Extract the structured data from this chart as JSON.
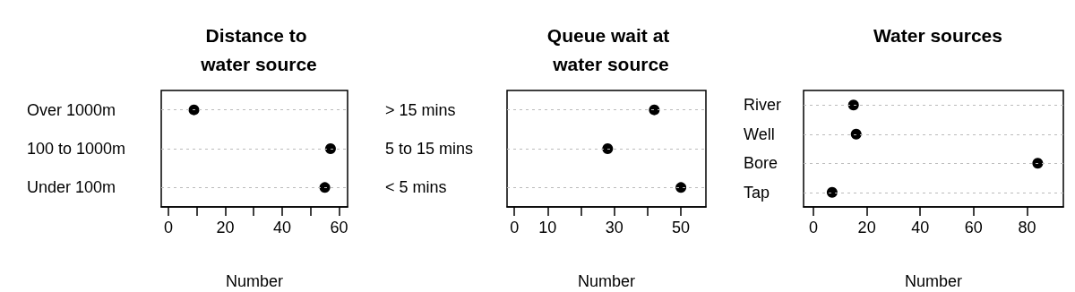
{
  "chart_data": [
    {
      "type": "scatter",
      "orientation": "horizontal",
      "title": "Distance to water source",
      "xlabel": "Number",
      "categories": [
        "Over 1000m",
        "100 to 1000m",
        "Under 100m"
      ],
      "values": [
        9,
        57,
        55
      ],
      "color": "#000000",
      "marker": "circle",
      "grid": "y",
      "xlim": [
        -2.5,
        63
      ],
      "xticks": [
        0,
        {
          "value": 10,
          "label": null
        },
        20,
        {
          "value": 30,
          "label": null
        },
        40,
        {
          "value": 50,
          "label": null
        },
        60
      ]
    },
    {
      "type": "scatter",
      "orientation": "horizontal",
      "title": "Queue wait at water source",
      "xlabel": "Number",
      "categories": [
        "> 15 mins",
        "5 to 15 mins",
        "< 5 mins"
      ],
      "values": [
        42,
        28,
        50
      ],
      "color": "#000000",
      "marker": "circle",
      "grid": "y",
      "xlim": [
        -2.2,
        57.5
      ],
      "xticks": [
        0,
        10,
        {
          "value": 20,
          "label": null
        },
        30,
        {
          "value": 40,
          "label": null
        },
        50
      ]
    },
    {
      "type": "scatter",
      "orientation": "horizontal",
      "title": "Water sources",
      "xlabel": "Number",
      "categories": [
        "River",
        "Well",
        "Bore",
        "Tap"
      ],
      "values": [
        15,
        16,
        84,
        7
      ],
      "color": "#000000",
      "marker": "circle",
      "grid": "y",
      "xlim": [
        -3.7,
        93.6
      ],
      "xticks": [
        0,
        20,
        40,
        60,
        80
      ]
    }
  ]
}
